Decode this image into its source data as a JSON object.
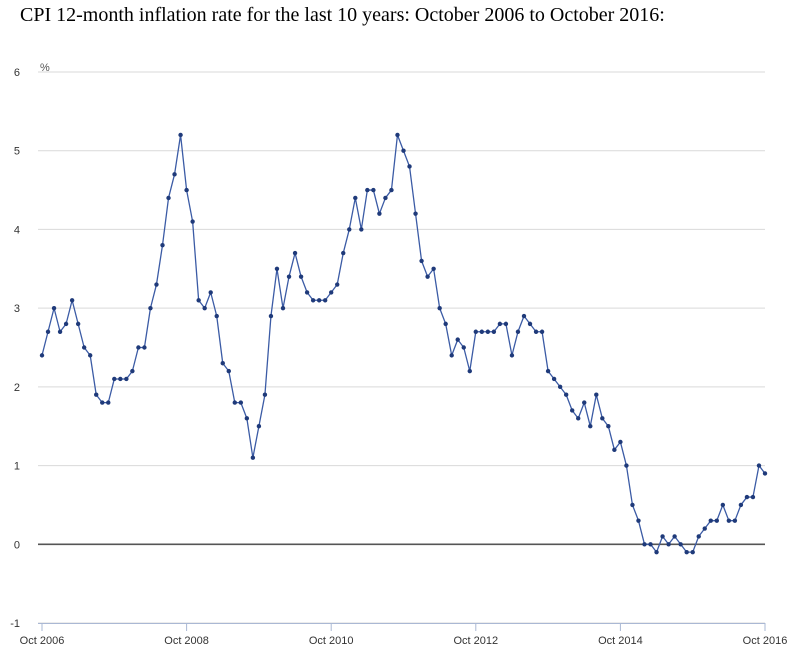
{
  "chart_data": {
    "type": "line",
    "title": "CPI 12-month inflation rate for the last 10 years: October 2006 to October 2016:",
    "ylabel": "%",
    "xlabel": "",
    "ylim": [
      -1,
      6
    ],
    "yticks": [
      "6",
      "5",
      "4",
      "3",
      "2",
      "1",
      "0",
      "-1"
    ],
    "xticks": [
      "Oct 2006",
      "Oct 2008",
      "Oct 2010",
      "Oct 2012",
      "Oct 2014",
      "Oct 2016"
    ],
    "grid": true,
    "legend": "none",
    "colors": {
      "line": "#3b5ba5",
      "marker": "#1f3a7a",
      "grid": "#d9d9d9",
      "zero_line": "#555555",
      "axis": "#aab8d4"
    },
    "series": [
      {
        "values": [
          2.4,
          2.7,
          3.0,
          2.7,
          2.8,
          3.1,
          2.8,
          2.5,
          2.4,
          1.9,
          1.8,
          1.8,
          2.1,
          2.1,
          2.1,
          2.2,
          2.5,
          2.5,
          3.0,
          3.3,
          3.8,
          4.4,
          4.7,
          5.2,
          4.5,
          4.1,
          3.1,
          3.0,
          3.2,
          2.9,
          2.3,
          2.2,
          1.8,
          1.8,
          1.6,
          1.1,
          1.5,
          1.9,
          2.9,
          3.5,
          3.0,
          3.4,
          3.7,
          3.4,
          3.2,
          3.1,
          3.1,
          3.1,
          3.2,
          3.3,
          3.7,
          4.0,
          4.4,
          4.0,
          4.5,
          4.5,
          4.2,
          4.4,
          4.5,
          5.2,
          5.0,
          4.8,
          4.2,
          3.6,
          3.4,
          3.5,
          3.0,
          2.8,
          2.4,
          2.6,
          2.5,
          2.2,
          2.7,
          2.7,
          2.7,
          2.7,
          2.8,
          2.8,
          2.4,
          2.7,
          2.9,
          2.8,
          2.7,
          2.7,
          2.2,
          2.1,
          2.0,
          1.9,
          1.7,
          1.6,
          1.8,
          1.5,
          1.9,
          1.6,
          1.5,
          1.2,
          1.3,
          1.0,
          0.5,
          0.3,
          0.0,
          0.0,
          -0.1,
          0.1,
          0.0,
          0.1,
          0.0,
          -0.1,
          -0.1,
          0.1,
          0.2,
          0.3,
          0.3,
          0.5,
          0.3,
          0.3,
          0.5,
          0.6,
          0.6,
          1.0,
          0.9
        ]
      }
    ]
  }
}
